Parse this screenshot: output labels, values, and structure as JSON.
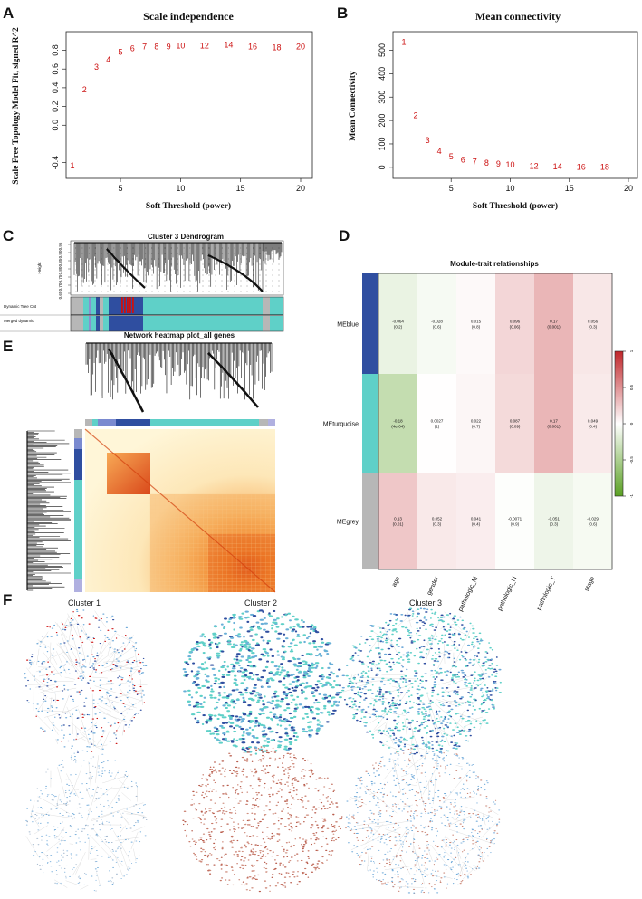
{
  "panels": {
    "a": "A",
    "b": "B",
    "c": "C",
    "d": "D",
    "e": "E",
    "f": "F"
  },
  "chart_data": [
    {
      "id": "A",
      "type": "scatter",
      "title": "Scale independence",
      "xlabel": "Soft Threshold (power)",
      "ylabel": "Scale Free Topology Model Fit, signed R^2",
      "xlim": [
        1,
        20
      ],
      "ylim": [
        -0.5,
        0.95
      ],
      "xticks": [
        "5",
        "10",
        "15",
        "20"
      ],
      "yticks": [
        "-0.4",
        "0.0",
        "0.2",
        "0.4",
        "0.6",
        "0.8"
      ],
      "points": [
        {
          "x": 1,
          "y": -0.43,
          "label": "1"
        },
        {
          "x": 2,
          "y": 0.38,
          "label": "2"
        },
        {
          "x": 3,
          "y": 0.62,
          "label": "3"
        },
        {
          "x": 4,
          "y": 0.7,
          "label": "4"
        },
        {
          "x": 5,
          "y": 0.78,
          "label": "5"
        },
        {
          "x": 6,
          "y": 0.82,
          "label": "6"
        },
        {
          "x": 7,
          "y": 0.84,
          "label": "7"
        },
        {
          "x": 8,
          "y": 0.84,
          "label": "8"
        },
        {
          "x": 9,
          "y": 0.84,
          "label": "9"
        },
        {
          "x": 10,
          "y": 0.85,
          "label": "10"
        },
        {
          "x": 12,
          "y": 0.85,
          "label": "12"
        },
        {
          "x": 14,
          "y": 0.86,
          "label": "14"
        },
        {
          "x": 16,
          "y": 0.84,
          "label": "16"
        },
        {
          "x": 18,
          "y": 0.83,
          "label": "18"
        },
        {
          "x": 20,
          "y": 0.84,
          "label": "20"
        }
      ]
    },
    {
      "id": "B",
      "type": "scatter",
      "title": "Mean connectivity",
      "xlabel": "Soft Threshold (power)",
      "ylabel": "Mean Connectivity",
      "xlim": [
        1,
        20
      ],
      "ylim": [
        -20,
        560
      ],
      "xticks": [
        "5",
        "10",
        "15",
        "20"
      ],
      "yticks": [
        "0",
        "100",
        "200",
        "300",
        "400",
        "500"
      ],
      "points": [
        {
          "x": 1,
          "y": 535,
          "label": "1"
        },
        {
          "x": 2,
          "y": 222,
          "label": "2"
        },
        {
          "x": 3,
          "y": 115,
          "label": "3"
        },
        {
          "x": 4,
          "y": 68,
          "label": "4"
        },
        {
          "x": 5,
          "y": 45,
          "label": "5"
        },
        {
          "x": 6,
          "y": 32,
          "label": "6"
        },
        {
          "x": 7,
          "y": 24,
          "label": "7"
        },
        {
          "x": 8,
          "y": 18,
          "label": "8"
        },
        {
          "x": 9,
          "y": 14,
          "label": "9"
        },
        {
          "x": 10,
          "y": 10,
          "label": "10"
        },
        {
          "x": 12,
          "y": 6,
          "label": "12"
        },
        {
          "x": 14,
          "y": 4,
          "label": "14"
        },
        {
          "x": 16,
          "y": 2,
          "label": "16"
        },
        {
          "x": 18,
          "y": 1,
          "label": "18"
        }
      ]
    },
    {
      "id": "D",
      "type": "heatmap",
      "title": "Module-trait relationships",
      "rows": [
        "MEblue",
        "MEturquoise",
        "MEgrey"
      ],
      "row_colors": [
        "#2f4ea0",
        "#5fd0c8",
        "#b7b7b7"
      ],
      "columns": [
        "age",
        "gender",
        "pathologic_M",
        "pathologic_N",
        "pathologic_T",
        "stage"
      ],
      "values": [
        [
          -0.064,
          -0.028,
          0.015,
          0.096,
          0.17,
          0.056
        ],
        [
          -0.18,
          0.0027,
          0.022,
          0.087,
          0.17,
          0.049
        ],
        [
          0.13,
          0.052,
          0.041,
          -0.0071,
          -0.051,
          -0.029
        ]
      ],
      "cell_text": [
        [
          [
            "-0.064",
            "(0.2)"
          ],
          [
            "-0.028",
            "(0.6)"
          ],
          [
            "0.015",
            "(0.8)"
          ],
          [
            "0.096",
            "(0.06)"
          ],
          [
            "0.17",
            "(0.001)"
          ],
          [
            "0.056",
            "(0.3)"
          ]
        ],
        [
          [
            "-0.18",
            "(4e-04)"
          ],
          [
            "0.0027",
            "(1)"
          ],
          [
            "0.022",
            "(0.7)"
          ],
          [
            "0.087",
            "(0.09)"
          ],
          [
            "0.17",
            "(0.001)"
          ],
          [
            "0.049",
            "(0.4)"
          ]
        ],
        [
          [
            "0.13",
            "(0.01)"
          ],
          [
            "0.052",
            "(0.3)"
          ],
          [
            "0.041",
            "(0.4)"
          ],
          [
            "-0.0071",
            "(0.9)"
          ],
          [
            "-0.051",
            "(0.3)"
          ],
          [
            "-0.029",
            "(0.6)"
          ]
        ]
      ],
      "scale": {
        "min": -1,
        "max": 1,
        "ticks": [
          "1",
          "0.5",
          "0",
          "-0.5",
          "-1"
        ],
        "colors": [
          "#5aa022",
          "#ffffff",
          "#c0262a"
        ]
      }
    }
  ],
  "panel_c": {
    "title": "Cluster 3 Dendrogram",
    "ylabel": "Height",
    "yticks": [
      "0.95",
      "0.90",
      "0.85",
      "0.80",
      "0.75",
      "0.70",
      "0.65"
    ],
    "row_labels": [
      "Dynamic Tree Cut",
      "Merged dynamic"
    ]
  },
  "panel_e": {
    "title": "Network heatmap plot_all genes"
  },
  "panel_f": {
    "cluster_labels": [
      "Cluster 1",
      "Cluster 2",
      "Cluster 3"
    ]
  },
  "colors": {
    "red": "#cc1111",
    "blue": "#2f4ea0",
    "turquoise": "#5fd0c8",
    "grey": "#b7b7b7"
  }
}
